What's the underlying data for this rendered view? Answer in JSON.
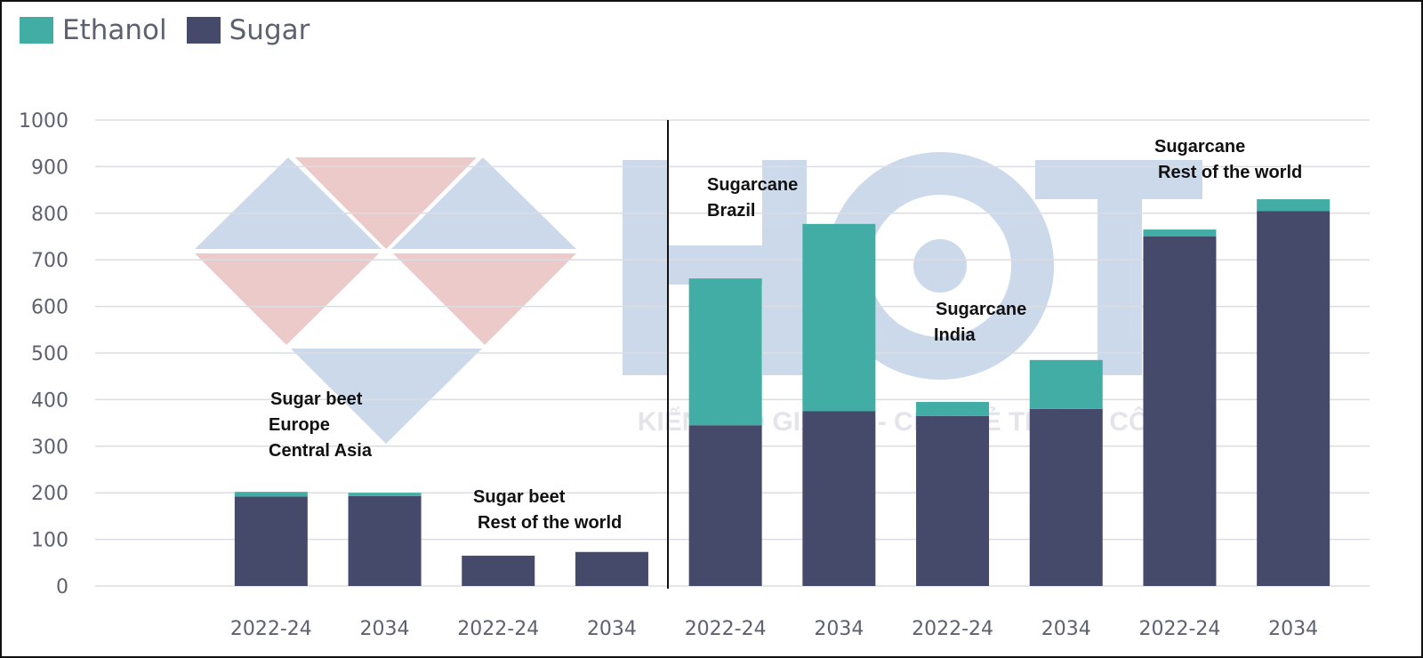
{
  "chart_data": {
    "type": "bar",
    "stacked": true,
    "categories": [
      "2022-24",
      "2034",
      "2022-24",
      "2034",
      "2022-24",
      "2034",
      "2022-24",
      "2034",
      "2022-24",
      "2034"
    ],
    "series": [
      {
        "name": "Sugar",
        "color": "#454a6b",
        "values": [
          192,
          193,
          65,
          73,
          345,
          375,
          365,
          380,
          750,
          805
        ]
      },
      {
        "name": "Ethanol",
        "color": "#41ada4",
        "values": [
          10,
          7,
          0,
          0,
          315,
          402,
          30,
          105,
          15,
          25
        ]
      }
    ],
    "legend": {
      "position": "top-left",
      "items": [
        "Ethanol",
        "Sugar"
      ]
    },
    "ylim": [
      0,
      1000
    ],
    "yticks": [
      0,
      100,
      200,
      300,
      400,
      500,
      600,
      700,
      800,
      900,
      1000
    ],
    "grid": true,
    "annotations": [
      {
        "lines": [
          "Sugar beet",
          "Europe",
          "Central Asia"
        ]
      },
      {
        "lines": [
          "Sugar beet",
          "Rest of the world"
        ]
      },
      {
        "lines": [
          "Sugarcane",
          "Brazil"
        ]
      },
      {
        "lines": [
          "Sugarcane",
          "India"
        ]
      },
      {
        "lines": [
          "Sugarcane",
          "Rest of the world"
        ]
      }
    ],
    "watermark": {
      "text": "HCT",
      "tagline": "KIẾN TẠO GIÁ TRỊ - CHIA SẺ THÀNH CÔNG"
    }
  }
}
